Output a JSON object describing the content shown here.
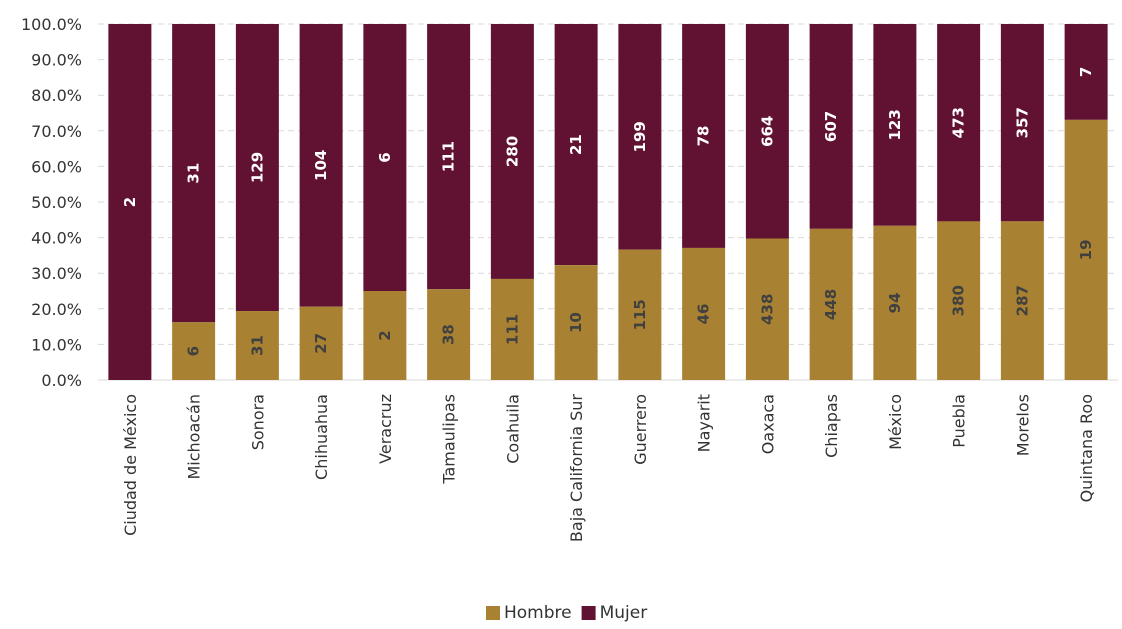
{
  "chart_data": {
    "type": "bar",
    "stacked": "percent",
    "categories": [
      "Ciudad de México",
      "Michoacán",
      "Sonora",
      "Chihuahua",
      "Veracruz",
      "Tamaulipas",
      "Coahuila",
      "Baja California Sur",
      "Guerrero",
      "Nayarit",
      "Oaxaca",
      "Chiapas",
      "México",
      "Puebla",
      "Morelos",
      "Quintana Roo"
    ],
    "series": [
      {
        "name": "Hombre",
        "color": "#A88232",
        "values": [
          0,
          6,
          31,
          27,
          2,
          38,
          111,
          10,
          115,
          46,
          438,
          448,
          94,
          380,
          287,
          19
        ],
        "labels": [
          "",
          "6",
          "31",
          "27",
          "2",
          "38",
          "111",
          "10",
          "115",
          "46",
          "438",
          "448",
          "94",
          "380",
          "287",
          "19"
        ]
      },
      {
        "name": "Mujer",
        "color": "#611232",
        "values": [
          2,
          31,
          129,
          104,
          6,
          111,
          280,
          21,
          199,
          78,
          664,
          607,
          123,
          473,
          357,
          7
        ],
        "labels": [
          "2",
          "31",
          "129",
          "104",
          "6",
          "111",
          "280",
          "21",
          "199",
          "78",
          "664",
          "607",
          "123",
          "473",
          "357",
          "7"
        ]
      }
    ],
    "yticks": [
      "0.0%",
      "10.0%",
      "20.0%",
      "30.0%",
      "40.0%",
      "50.0%",
      "60.0%",
      "70.0%",
      "80.0%",
      "90.0%",
      "100.0%"
    ],
    "ylim": [
      0,
      100
    ],
    "grid": true,
    "legend_position": "bottom",
    "title": "",
    "xlabel": "",
    "ylabel": ""
  }
}
